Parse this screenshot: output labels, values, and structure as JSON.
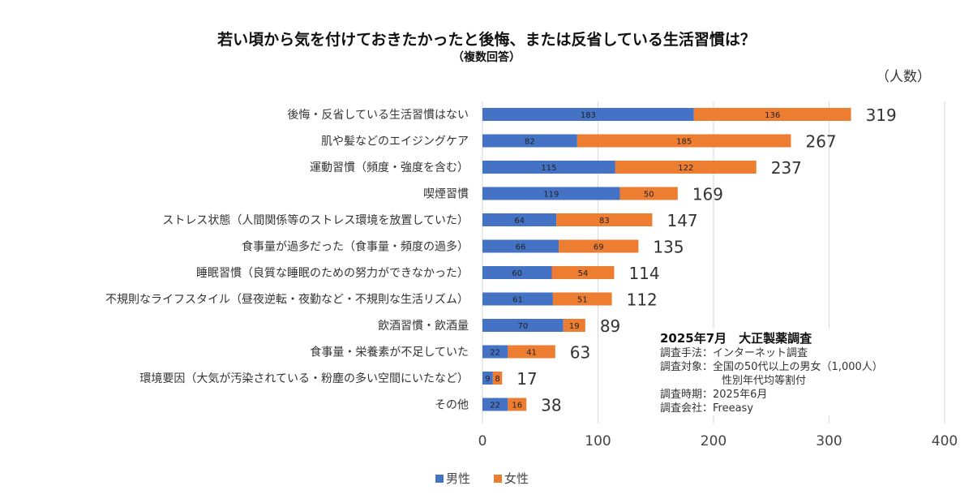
{
  "chart_data": {
    "type": "bar",
    "orientation": "horizontal",
    "stacked": true,
    "title": "若い頃から気を付けておきたかったと後悔、または反省している生活習慣は？",
    "subtitle": "（複数回答）",
    "unit_label": "（人数）",
    "categories": [
      "後悔・反省している生活習慣はない",
      "肌や髪などのエイジングケア",
      "運動習慣（頻度・強度を含む）",
      "喫煙習慣",
      "ストレス状態（人間関係等のストレス環境を放置していた）",
      "食事量が過多だった（食事量・頻度の過多）",
      "睡眠習慣（良質な睡眠のための努力ができなかった）",
      "不規則なライフスタイル（昼夜逆転・夜勤など・不規則な生活リズム）",
      "飲酒習慣・飲酒量",
      "食事量・栄養素が不足していた",
      "環境要因（大気が汚染されている・粉塵の多い空間にいたなど）",
      "その他"
    ],
    "series": [
      {
        "name": "男性",
        "color": "#4472C4",
        "values": [
          183,
          82,
          115,
          119,
          64,
          66,
          60,
          61,
          70,
          22,
          9,
          22
        ]
      },
      {
        "name": "女性",
        "color": "#ED7D31",
        "values": [
          136,
          185,
          122,
          50,
          83,
          69,
          54,
          51,
          19,
          41,
          8,
          16
        ]
      }
    ],
    "totals": [
      319,
      267,
      237,
      169,
      147,
      135,
      114,
      112,
      89,
      63,
      17,
      38
    ],
    "xlim": [
      0,
      400
    ],
    "xticks": [
      0,
      100,
      200,
      300,
      400
    ],
    "grid": true,
    "legend": "bottom"
  },
  "note": {
    "heading": "2025年7月　大正製薬調査",
    "lines": [
      "調査手法：インターネット調査",
      "調査対象：全国の50代以上の男女（1,000人）",
      "性別年代均等割付",
      "調査時期：2025年6月",
      "調査会社：Freeasy"
    ]
  }
}
